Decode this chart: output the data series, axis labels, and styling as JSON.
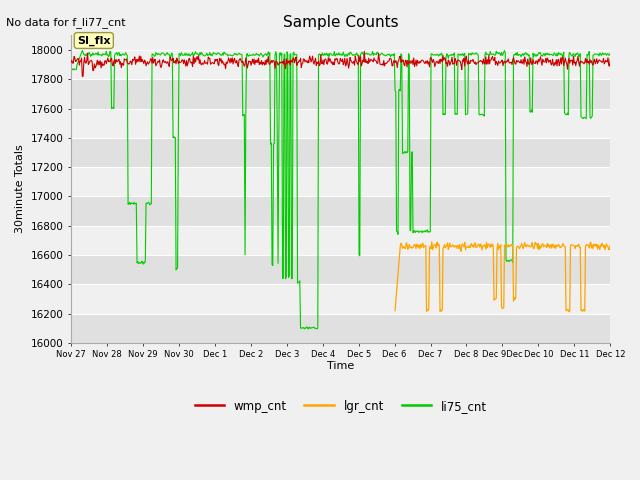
{
  "title": "Sample Counts",
  "ylabel": "30minute Totals",
  "xlabel": "Time",
  "note": "No data for f_li77_cnt",
  "annotation": "SI_flx",
  "ylim": [
    16000,
    18100
  ],
  "xlim": [
    0,
    360
  ],
  "wmp_color": "#cc0000",
  "lgr_color": "#ffa500",
  "li75_color": "#00cc00",
  "tick_labels": [
    "Nov 27",
    "Nov 28",
    "Nov 29",
    "Nov 30",
    "Dec 1",
    "Dec 2",
    "Dec 3",
    "Dec 4",
    "Dec 5",
    "Dec 6",
    "Dec 7",
    "Dec 8",
    "Dec 9Dec",
    "Dec 10",
    "Dec 11",
    "Dec 12"
  ],
  "tick_positions": [
    0,
    24,
    48,
    72,
    96,
    120,
    144,
    168,
    192,
    216,
    240,
    264,
    288,
    312,
    336,
    360
  ],
  "ytick_vals": [
    16000,
    16200,
    16400,
    16600,
    16800,
    17000,
    17200,
    17400,
    17600,
    17800,
    18000
  ],
  "bg_light": "#f0f0f0",
  "bg_dark": "#e0e0e0"
}
